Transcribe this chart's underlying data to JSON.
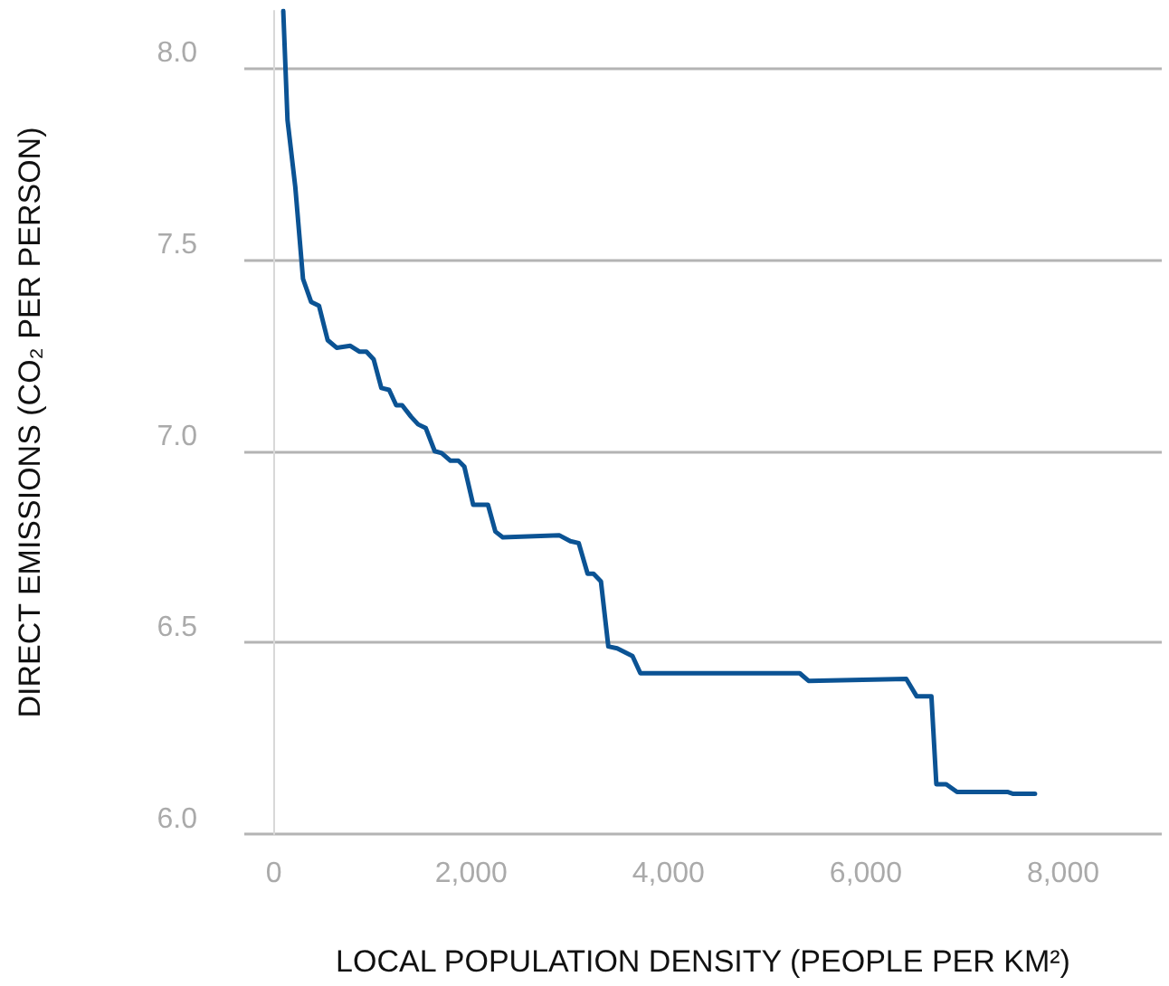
{
  "chart_data": {
    "type": "line",
    "xlabel": "LOCAL POPULATION DENSITY (PEOPLE PER KM²)",
    "ylabel": "DIRECT EMISSIONS (CO₂ PER PERSON)",
    "xlim": [
      -300,
      9000
    ],
    "xticks": [
      {
        "value": 0,
        "label": "0"
      },
      {
        "value": 2000,
        "label": "2,000"
      },
      {
        "value": 4000,
        "label": "4,000"
      },
      {
        "value": 6000,
        "label": "6,000"
      },
      {
        "value": 8000,
        "label": "8,000"
      }
    ],
    "ylim": [
      6,
      8.15
    ],
    "yticks": [
      {
        "value": 6,
        "label": "6.0"
      },
      {
        "value": 6.5,
        "label": "6.5"
      },
      {
        "value": 7,
        "label": "7.0"
      },
      {
        "value": 7.5,
        "label": "7.5"
      },
      {
        "value": 8,
        "label": "8.0"
      }
    ],
    "grid": "y",
    "marker": "none",
    "line_style": "solid",
    "series": [
      {
        "color": "#0b5394",
        "x": [
          95,
          138,
          217,
          295,
          377,
          457,
          545,
          636,
          775,
          866,
          938,
          1011,
          1089,
          1168,
          1240,
          1300,
          1390,
          1462,
          1540,
          1630,
          1700,
          1790,
          1870,
          1930,
          2020,
          2170,
          2245,
          2320,
          2895,
          3005,
          3090,
          3180,
          3240,
          3315,
          3390,
          3480,
          3635,
          3715,
          5330,
          5420,
          6410,
          6515,
          6665,
          6715,
          6815,
          6925,
          7435,
          7495,
          7715
        ],
        "values": [
          8.15,
          7.865,
          7.69,
          7.45,
          7.39,
          7.38,
          7.29,
          7.27,
          7.275,
          7.26,
          7.26,
          7.24,
          7.165,
          7.16,
          7.12,
          7.12,
          7.09,
          7.07,
          7.06,
          7.0,
          6.995,
          6.975,
          6.975,
          6.96,
          6.86,
          6.86,
          6.79,
          6.775,
          6.78,
          6.765,
          6.76,
          6.68,
          6.68,
          6.66,
          6.49,
          6.485,
          6.465,
          6.42,
          6.42,
          6.4,
          6.405,
          6.36,
          6.36,
          6.13,
          6.13,
          6.11,
          6.11,
          6.105,
          6.105
        ]
      }
    ]
  }
}
